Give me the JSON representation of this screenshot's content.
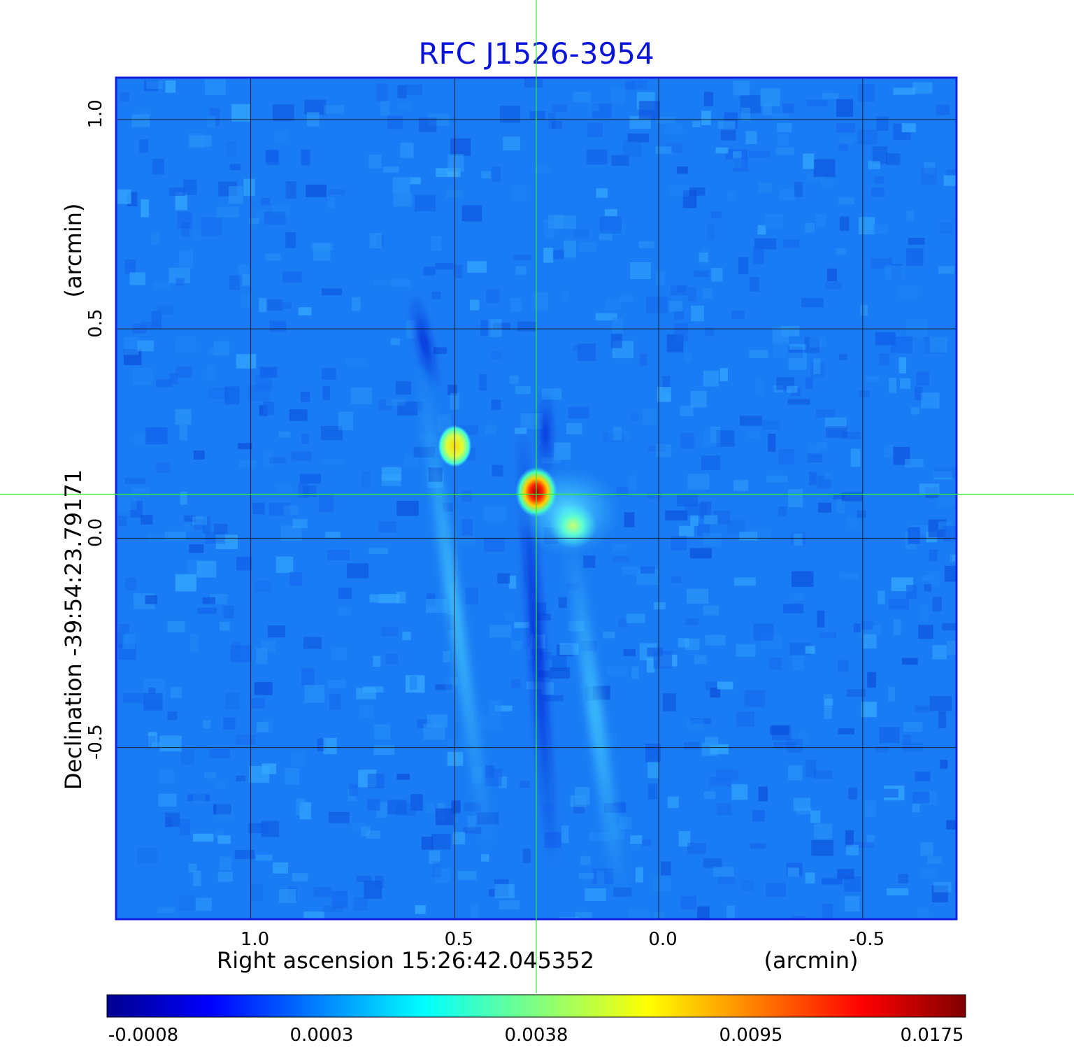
{
  "chart_data": {
    "type": "heatmap",
    "title": "RFC J1526-3954",
    "title_color": "#0a14d8",
    "xlabel": "Right ascension  15:26:42.045352",
    "xunit": "(arcmin)",
    "ylabel": "Declination  -39:54:23.79171",
    "yunit": "(arcmin)",
    "xlim": [
      1.33,
      -0.73
    ],
    "ylim": [
      -0.91,
      1.1
    ],
    "x_ticks": [
      1.0,
      0.5,
      0.0,
      -0.5
    ],
    "x_tick_labels": [
      "1.0",
      "0.5",
      "0.0",
      "-0.5"
    ],
    "y_ticks": [
      1.0,
      0.5,
      0.0,
      -0.5
    ],
    "y_tick_labels": [
      "1.0",
      "0.5",
      "0.0",
      "-0.5"
    ],
    "grid": true,
    "crosshair": {
      "x": 0.3,
      "y": 0.105,
      "color": "#33ee33"
    },
    "colormap": "jet",
    "colorbar": {
      "orientation": "horizontal",
      "placement": "bottom",
      "tick_labels": [
        "-0.0008",
        "0.0003",
        "0.0038",
        "0.0095",
        "0.0175"
      ],
      "range": [
        -0.0008,
        0.0175
      ]
    },
    "sources": [
      {
        "x": 0.3,
        "y": 0.11,
        "peak": 0.0175
      },
      {
        "x": 0.5,
        "y": 0.22,
        "peak": 0.0072
      },
      {
        "x": 0.21,
        "y": 0.03,
        "peak": 0.0046
      }
    ],
    "background_level": 0.0001
  }
}
